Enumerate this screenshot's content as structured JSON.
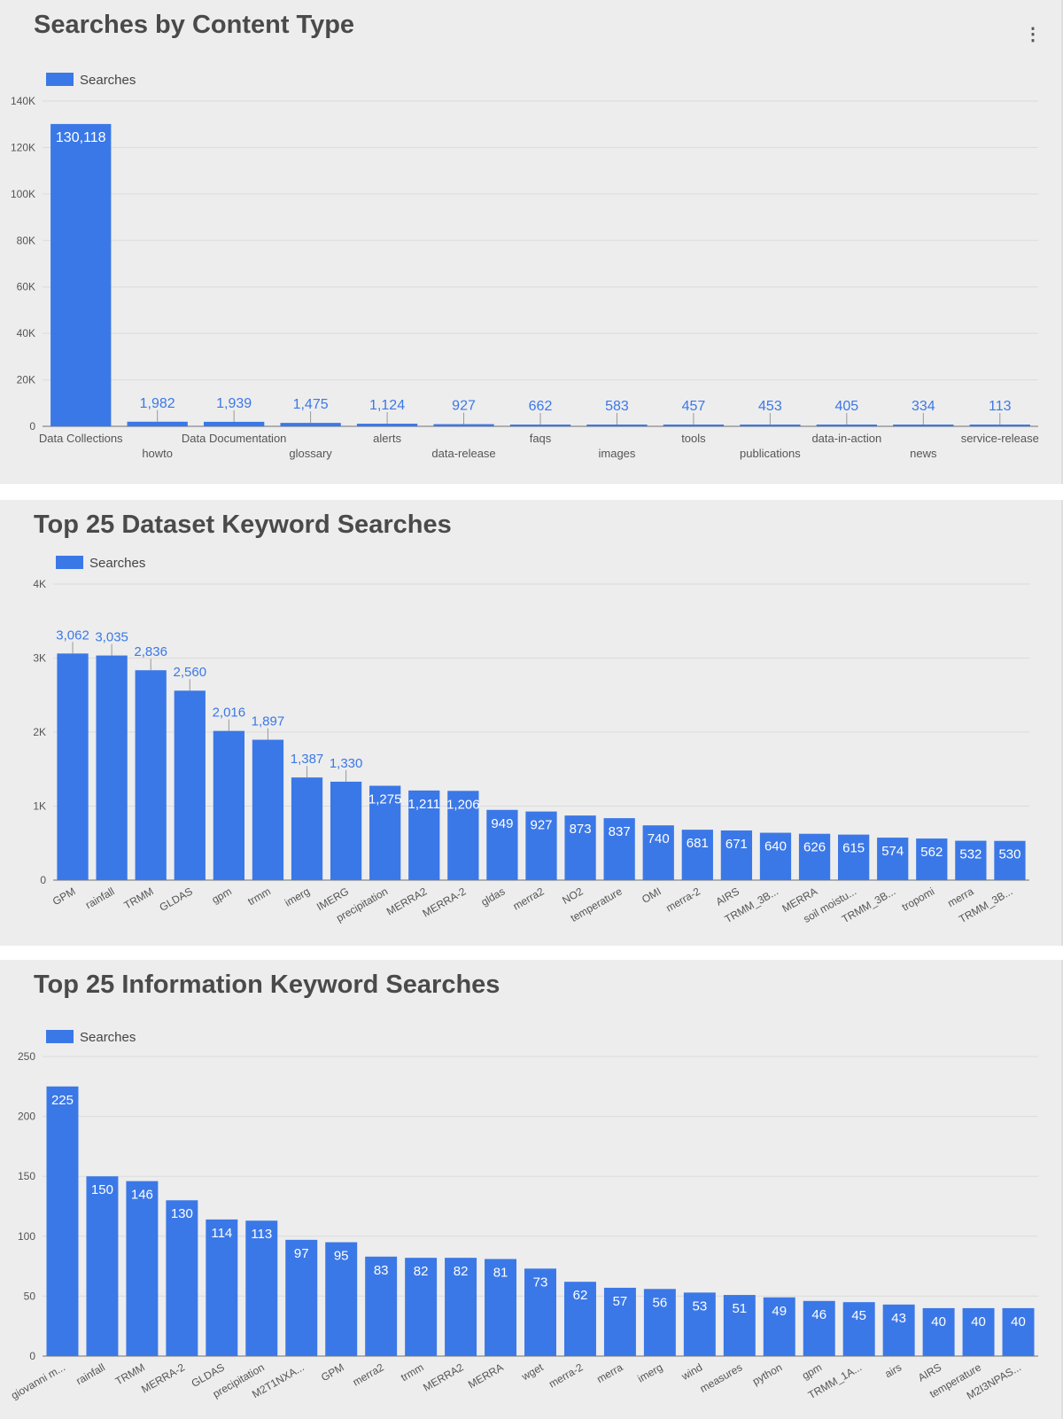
{
  "chart_data": [
    {
      "type": "bar",
      "title": "Searches by Content Type",
      "xlabel": "",
      "ylabel": "",
      "legend": {
        "label": "Searches",
        "position": "top-left"
      },
      "grid": true,
      "color": "#3b78e7",
      "ylim": [
        0,
        140000
      ],
      "yticks": [
        "0",
        "20K",
        "40K",
        "60K",
        "80K",
        "100K",
        "120K",
        "140K"
      ],
      "categories": [
        "Data Collections",
        "howto",
        "Data Documentation",
        "glossary",
        "alerts",
        "data-release",
        "faqs",
        "images",
        "tools",
        "publications",
        "data-in-action",
        "news",
        "service-release"
      ],
      "values": [
        130118,
        1982,
        1939,
        1475,
        1124,
        927,
        662,
        583,
        457,
        453,
        405,
        334,
        113
      ],
      "value_labels": [
        "130,118",
        "1,982",
        "1,939",
        "1,475",
        "1,124",
        "927",
        "662",
        "583",
        "457",
        "453",
        "405",
        "334",
        "113"
      ]
    },
    {
      "type": "bar",
      "title": "Top 25 Dataset Keyword Searches",
      "xlabel": "",
      "ylabel": "",
      "legend": {
        "label": "Searches",
        "position": "top-left"
      },
      "grid": true,
      "color": "#3b78e7",
      "ylim": [
        0,
        4000
      ],
      "yticks": [
        "0",
        "1K",
        "2K",
        "3K",
        "4K"
      ],
      "categories": [
        "GPM",
        "rainfall",
        "TRMM",
        "GLDAS",
        "gpm",
        "trmm",
        "imerg",
        "IMERG",
        "precipitation",
        "MERRA2",
        "MERRA-2",
        "gldas",
        "merra2",
        "NO2",
        "temperature",
        "OMI",
        "merra-2",
        "AIRS",
        "TRMM_3B...",
        "MERRA",
        "soil moistu...",
        "TRMM_3B...",
        "tropomi",
        "merra",
        "TRMM_3B..."
      ],
      "values": [
        3062,
        3035,
        2836,
        2560,
        2016,
        1897,
        1387,
        1330,
        1275,
        1211,
        1206,
        949,
        927,
        873,
        837,
        740,
        681,
        671,
        640,
        626,
        615,
        574,
        562,
        532,
        530
      ],
      "value_labels": [
        "3,062",
        "3,035",
        "2,836",
        "2,560",
        "2,016",
        "1,897",
        "1,387",
        "1,330",
        "1,275",
        "1,211",
        "1,206",
        "949",
        "927",
        "873",
        "837",
        "740",
        "681",
        "671",
        "640",
        "626",
        "615",
        "574",
        "562",
        "532",
        "530"
      ]
    },
    {
      "type": "bar",
      "title": "Top 25 Information Keyword Searches",
      "xlabel": "",
      "ylabel": "",
      "legend": {
        "label": "Searches",
        "position": "top-left"
      },
      "grid": true,
      "color": "#3b78e7",
      "ylim": [
        0,
        250
      ],
      "yticks": [
        "0",
        "50",
        "100",
        "150",
        "200",
        "250"
      ],
      "categories": [
        "giovanni m...",
        "rainfall",
        "TRMM",
        "MERRA-2",
        "GLDAS",
        "precipitation",
        "M2T1NXA...",
        "GPM",
        "merra2",
        "trmm",
        "MERRA2",
        "MERRA",
        "wget",
        "merra-2",
        "merra",
        "imerg",
        "wind",
        "measures",
        "python",
        "gpm",
        "TRMM_1A...",
        "airs",
        "AIRS",
        "temperature",
        "M2I3NPAS..."
      ],
      "values": [
        225,
        150,
        146,
        130,
        114,
        113,
        97,
        95,
        83,
        82,
        82,
        81,
        73,
        62,
        57,
        56,
        53,
        51,
        49,
        46,
        45,
        43,
        40,
        40,
        40
      ],
      "value_labels": [
        "225",
        "150",
        "146",
        "130",
        "114",
        "113",
        "97",
        "95",
        "83",
        "82",
        "82",
        "81",
        "73",
        "62",
        "57",
        "56",
        "53",
        "51",
        "49",
        "46",
        "45",
        "43",
        "40",
        "40",
        "40"
      ]
    }
  ]
}
